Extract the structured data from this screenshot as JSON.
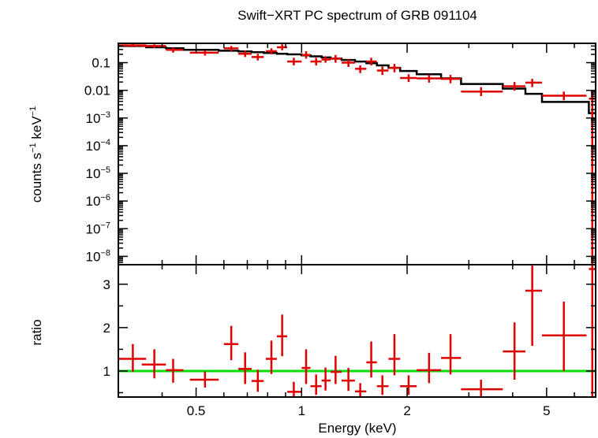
{
  "chart_data": {
    "title": "Swift−XRT PC spectrum of GRB 091104",
    "xlabel": "Energy (keV)",
    "x_scale": "log",
    "xlim": [
      0.3,
      6.9
    ],
    "x_ticks": [
      {
        "value": 0.5,
        "label": "0.5"
      },
      {
        "value": 1,
        "label": "1"
      },
      {
        "value": 2,
        "label": "2"
      },
      {
        "value": 5,
        "label": "5"
      }
    ],
    "top": {
      "type": "scatter",
      "ylabel_parts": [
        "counts s",
        "−1",
        " keV",
        "−1"
      ],
      "y_scale": "log",
      "ylim": [
        5e-09,
        0.5
      ],
      "y_ticks": [
        {
          "value": 0.1,
          "label": "0.1"
        },
        {
          "value": 0.01,
          "label": "0.01"
        },
        {
          "value": 0.001,
          "base": "10",
          "exp": "−3"
        },
        {
          "value": 0.0001,
          "base": "10",
          "exp": "−4"
        },
        {
          "value": 1e-05,
          "base": "10",
          "exp": "−5"
        },
        {
          "value": 1e-06,
          "base": "10",
          "exp": "−6"
        },
        {
          "value": 1e-07,
          "base": "10",
          "exp": "−7"
        },
        {
          "value": 1e-08,
          "base": "10",
          "exp": "−8"
        }
      ],
      "points": [
        {
          "x": 0.33,
          "xlo": 0.3,
          "xhi": 0.36,
          "y": 0.42,
          "ylo": 0.36,
          "yhi": 0.48
        },
        {
          "x": 0.38,
          "xlo": 0.35,
          "xhi": 0.41,
          "y": 0.4,
          "ylo": 0.34,
          "yhi": 0.46
        },
        {
          "x": 0.43,
          "xlo": 0.41,
          "xhi": 0.46,
          "y": 0.29,
          "ylo": 0.23,
          "yhi": 0.35
        },
        {
          "x": 0.53,
          "xlo": 0.48,
          "xhi": 0.58,
          "y": 0.23,
          "ylo": 0.18,
          "yhi": 0.28
        },
        {
          "x": 0.63,
          "xlo": 0.6,
          "xhi": 0.66,
          "y": 0.33,
          "ylo": 0.26,
          "yhi": 0.4
        },
        {
          "x": 0.69,
          "xlo": 0.66,
          "xhi": 0.72,
          "y": 0.21,
          "ylo": 0.16,
          "yhi": 0.27
        },
        {
          "x": 0.75,
          "xlo": 0.72,
          "xhi": 0.78,
          "y": 0.16,
          "ylo": 0.12,
          "yhi": 0.21
        },
        {
          "x": 0.82,
          "xlo": 0.79,
          "xhi": 0.85,
          "y": 0.26,
          "ylo": 0.2,
          "yhi": 0.33
        },
        {
          "x": 0.88,
          "xlo": 0.85,
          "xhi": 0.91,
          "y": 0.36,
          "ylo": 0.28,
          "yhi": 0.46
        },
        {
          "x": 0.95,
          "xlo": 0.91,
          "xhi": 1.0,
          "y": 0.11,
          "ylo": 0.08,
          "yhi": 0.15
        },
        {
          "x": 1.03,
          "xlo": 1.0,
          "xhi": 1.06,
          "y": 0.19,
          "ylo": 0.14,
          "yhi": 0.26
        },
        {
          "x": 1.1,
          "xlo": 1.06,
          "xhi": 1.14,
          "y": 0.11,
          "ylo": 0.08,
          "yhi": 0.15
        },
        {
          "x": 1.17,
          "xlo": 1.14,
          "xhi": 1.21,
          "y": 0.13,
          "ylo": 0.1,
          "yhi": 0.17
        },
        {
          "x": 1.25,
          "xlo": 1.21,
          "xhi": 1.3,
          "y": 0.14,
          "ylo": 0.1,
          "yhi": 0.19
        },
        {
          "x": 1.36,
          "xlo": 1.3,
          "xhi": 1.42,
          "y": 0.1,
          "ylo": 0.07,
          "yhi": 0.13
        },
        {
          "x": 1.47,
          "xlo": 1.42,
          "xhi": 1.53,
          "y": 0.06,
          "ylo": 0.042,
          "yhi": 0.08
        },
        {
          "x": 1.58,
          "xlo": 1.53,
          "xhi": 1.64,
          "y": 0.11,
          "ylo": 0.08,
          "yhi": 0.15
        },
        {
          "x": 1.7,
          "xlo": 1.64,
          "xhi": 1.77,
          "y": 0.052,
          "ylo": 0.036,
          "yhi": 0.072
        },
        {
          "x": 1.84,
          "xlo": 1.77,
          "xhi": 1.91,
          "y": 0.065,
          "ylo": 0.045,
          "yhi": 0.09
        },
        {
          "x": 2.02,
          "xlo": 1.91,
          "xhi": 2.13,
          "y": 0.028,
          "ylo": 0.02,
          "yhi": 0.038
        },
        {
          "x": 2.31,
          "xlo": 2.13,
          "xhi": 2.5,
          "y": 0.027,
          "ylo": 0.019,
          "yhi": 0.037
        },
        {
          "x": 2.66,
          "xlo": 2.5,
          "xhi": 2.85,
          "y": 0.026,
          "ylo": 0.018,
          "yhi": 0.036
        },
        {
          "x": 3.25,
          "xlo": 2.85,
          "xhi": 3.75,
          "y": 0.009,
          "ylo": 0.0062,
          "yhi": 0.013
        },
        {
          "x": 4.05,
          "xlo": 3.75,
          "xhi": 4.35,
          "y": 0.014,
          "ylo": 0.0098,
          "yhi": 0.02
        },
        {
          "x": 4.55,
          "xlo": 4.35,
          "xhi": 4.85,
          "y": 0.019,
          "ylo": 0.013,
          "yhi": 0.026
        },
        {
          "x": 5.6,
          "xlo": 4.85,
          "xhi": 6.5,
          "y": 0.0064,
          "ylo": 0.0044,
          "yhi": 0.009
        },
        {
          "x": 6.75,
          "xlo": 6.6,
          "xhi": 6.9,
          "y": 0.005,
          "ylo": 2e-10,
          "yhi": 0.009
        }
      ],
      "model_steps": [
        {
          "xlo": 0.3,
          "xhi": 0.36,
          "y": 0.4
        },
        {
          "xlo": 0.36,
          "xhi": 0.41,
          "y": 0.36
        },
        {
          "xlo": 0.41,
          "xhi": 0.46,
          "y": 0.33
        },
        {
          "xlo": 0.46,
          "xhi": 0.58,
          "y": 0.29
        },
        {
          "xlo": 0.58,
          "xhi": 0.66,
          "y": 0.27
        },
        {
          "xlo": 0.66,
          "xhi": 0.72,
          "y": 0.255
        },
        {
          "xlo": 0.72,
          "xhi": 0.78,
          "y": 0.24
        },
        {
          "xlo": 0.78,
          "xhi": 0.85,
          "y": 0.225
        },
        {
          "xlo": 0.85,
          "xhi": 0.91,
          "y": 0.21
        },
        {
          "xlo": 0.91,
          "xhi": 1.0,
          "y": 0.2
        },
        {
          "xlo": 1.0,
          "xhi": 1.06,
          "y": 0.185
        },
        {
          "xlo": 1.06,
          "xhi": 1.14,
          "y": 0.17
        },
        {
          "xlo": 1.14,
          "xhi": 1.21,
          "y": 0.155
        },
        {
          "xlo": 1.21,
          "xhi": 1.3,
          "y": 0.14
        },
        {
          "xlo": 1.3,
          "xhi": 1.42,
          "y": 0.125
        },
        {
          "xlo": 1.42,
          "xhi": 1.53,
          "y": 0.11
        },
        {
          "xlo": 1.53,
          "xhi": 1.64,
          "y": 0.095
        },
        {
          "xlo": 1.64,
          "xhi": 1.77,
          "y": 0.08
        },
        {
          "xlo": 1.77,
          "xhi": 1.91,
          "y": 0.065
        },
        {
          "xlo": 1.91,
          "xhi": 2.13,
          "y": 0.05
        },
        {
          "xlo": 2.13,
          "xhi": 2.5,
          "y": 0.038
        },
        {
          "xlo": 2.5,
          "xhi": 2.85,
          "y": 0.027
        },
        {
          "xlo": 2.85,
          "xhi": 3.75,
          "y": 0.017
        },
        {
          "xlo": 3.75,
          "xhi": 4.35,
          "y": 0.0115
        },
        {
          "xlo": 4.35,
          "xhi": 4.85,
          "y": 0.0075
        },
        {
          "xlo": 4.85,
          "xhi": 6.6,
          "y": 0.0038
        },
        {
          "xlo": 6.6,
          "xhi": 6.9,
          "y": 0.0015
        }
      ]
    },
    "bottom": {
      "type": "scatter",
      "ylabel": "ratio",
      "y_scale": "linear",
      "ylim": [
        0.4,
        3.45
      ],
      "y_ticks": [
        {
          "value": 1,
          "label": "1"
        },
        {
          "value": 2,
          "label": "2"
        },
        {
          "value": 3,
          "label": "3"
        }
      ],
      "reference_line": 1,
      "reference_color": "#00e000",
      "points": [
        {
          "x": 0.33,
          "xlo": 0.3,
          "xhi": 0.36,
          "y": 1.28,
          "ylo": 0.98,
          "yhi": 1.62
        },
        {
          "x": 0.38,
          "xlo": 0.35,
          "xhi": 0.41,
          "y": 1.15,
          "ylo": 0.83,
          "yhi": 1.5
        },
        {
          "x": 0.43,
          "xlo": 0.41,
          "xhi": 0.46,
          "y": 1.02,
          "ylo": 0.73,
          "yhi": 1.28
        },
        {
          "x": 0.53,
          "xlo": 0.48,
          "xhi": 0.58,
          "y": 0.8,
          "ylo": 0.62,
          "yhi": 0.99
        },
        {
          "x": 0.63,
          "xlo": 0.6,
          "xhi": 0.66,
          "y": 1.62,
          "ylo": 1.25,
          "yhi": 2.04
        },
        {
          "x": 0.69,
          "xlo": 0.66,
          "xhi": 0.72,
          "y": 1.05,
          "ylo": 0.7,
          "yhi": 1.43
        },
        {
          "x": 0.75,
          "xlo": 0.72,
          "xhi": 0.78,
          "y": 0.77,
          "ylo": 0.52,
          "yhi": 1.03
        },
        {
          "x": 0.82,
          "xlo": 0.79,
          "xhi": 0.85,
          "y": 1.28,
          "ylo": 0.93,
          "yhi": 1.7
        },
        {
          "x": 0.88,
          "xlo": 0.85,
          "xhi": 0.91,
          "y": 1.8,
          "ylo": 1.34,
          "yhi": 2.3
        },
        {
          "x": 0.95,
          "xlo": 0.91,
          "xhi": 1.0,
          "y": 0.52,
          "ylo": 0.4,
          "yhi": 0.75
        },
        {
          "x": 1.03,
          "xlo": 1.0,
          "xhi": 1.06,
          "y": 1.07,
          "ylo": 0.7,
          "yhi": 1.5
        },
        {
          "x": 1.1,
          "xlo": 1.06,
          "xhi": 1.14,
          "y": 0.65,
          "ylo": 0.45,
          "yhi": 0.92
        },
        {
          "x": 1.17,
          "xlo": 1.14,
          "xhi": 1.21,
          "y": 0.78,
          "ylo": 0.55,
          "yhi": 1.08
        },
        {
          "x": 1.25,
          "xlo": 1.21,
          "xhi": 1.3,
          "y": 0.98,
          "ylo": 0.7,
          "yhi": 1.35
        },
        {
          "x": 1.36,
          "xlo": 1.3,
          "xhi": 1.42,
          "y": 0.78,
          "ylo": 0.54,
          "yhi": 1.07
        },
        {
          "x": 1.47,
          "xlo": 1.42,
          "xhi": 1.53,
          "y": 0.53,
          "ylo": 0.4,
          "yhi": 0.72
        },
        {
          "x": 1.58,
          "xlo": 1.53,
          "xhi": 1.64,
          "y": 1.2,
          "ylo": 0.85,
          "yhi": 1.68
        },
        {
          "x": 1.7,
          "xlo": 1.64,
          "xhi": 1.77,
          "y": 0.65,
          "ylo": 0.45,
          "yhi": 0.9
        },
        {
          "x": 1.84,
          "xlo": 1.77,
          "xhi": 1.91,
          "y": 1.28,
          "ylo": 0.9,
          "yhi": 1.85
        },
        {
          "x": 2.02,
          "xlo": 1.91,
          "xhi": 2.13,
          "y": 0.65,
          "ylo": 0.45,
          "yhi": 0.9
        },
        {
          "x": 2.31,
          "xlo": 2.13,
          "xhi": 2.5,
          "y": 1.02,
          "ylo": 0.72,
          "yhi": 1.42
        },
        {
          "x": 2.66,
          "xlo": 2.5,
          "xhi": 2.85,
          "y": 1.3,
          "ylo": 0.92,
          "yhi": 1.85
        },
        {
          "x": 3.25,
          "xlo": 2.85,
          "xhi": 3.75,
          "y": 0.58,
          "ylo": 0.4,
          "yhi": 0.8
        },
        {
          "x": 4.05,
          "xlo": 3.75,
          "xhi": 4.35,
          "y": 1.45,
          "ylo": 0.8,
          "yhi": 2.12
        },
        {
          "x": 4.55,
          "xlo": 4.35,
          "xhi": 4.85,
          "y": 2.85,
          "ylo": 1.58,
          "yhi": 3.45
        },
        {
          "x": 5.6,
          "xlo": 4.85,
          "xhi": 6.5,
          "y": 1.82,
          "ylo": 1.0,
          "yhi": 2.6
        },
        {
          "x": 6.75,
          "xlo": 6.6,
          "xhi": 6.9,
          "y": 3.35,
          "ylo": 0.4,
          "yhi": 3.45
        }
      ]
    }
  }
}
